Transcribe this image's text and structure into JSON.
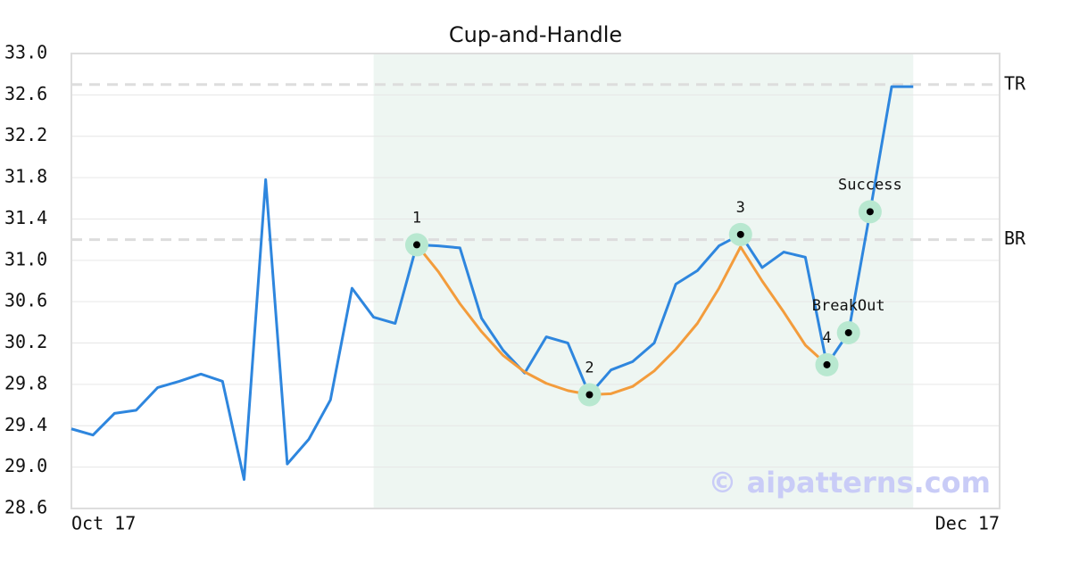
{
  "chart_data": {
    "type": "line",
    "title": "Cup-and-Handle",
    "x": [
      0,
      1,
      2,
      3,
      4,
      5,
      6,
      7,
      8,
      9,
      10,
      11,
      12,
      13,
      14,
      15,
      16,
      17,
      18,
      19,
      20,
      21,
      22,
      23,
      24,
      25,
      26,
      27,
      28,
      29,
      30,
      31,
      32,
      33,
      34,
      35,
      36,
      37,
      38,
      39
    ],
    "xlim": [
      0,
      43
    ],
    "xticks": [
      {
        "value": 0,
        "label": "Oct 17"
      },
      {
        "value": 43,
        "label": "Dec 17"
      }
    ],
    "ylim": [
      28.6,
      33.0
    ],
    "yticks": [
      {
        "value": 28.6,
        "label": "28.6"
      },
      {
        "value": 29,
        "label": "29.0"
      },
      29.4,
      29.8,
      30.2,
      30.6,
      {
        "value": 31,
        "label": "31.0"
      },
      31.4,
      31.8,
      32.2,
      32.6,
      {
        "value": 33,
        "label": "33.0"
      }
    ],
    "grid": true,
    "series": [
      {
        "color": "#2e86de",
        "values": [
          29.37,
          29.31,
          29.52,
          29.55,
          29.77,
          29.83,
          29.9,
          29.83,
          28.88,
          31.78,
          29.03,
          29.27,
          29.65,
          30.73,
          30.45,
          30.39,
          31.15,
          31.14,
          31.12,
          30.44,
          30.13,
          29.91,
          30.26,
          30.2,
          29.7,
          29.94,
          30.02,
          30.2,
          30.77,
          30.9,
          31.14,
          31.25,
          30.93,
          31.08,
          31.03,
          29.99,
          30.3,
          31.47,
          32.68,
          32.68
        ]
      },
      {
        "color": "#f39c3c",
        "values": [
          null,
          null,
          null,
          null,
          null,
          null,
          null,
          null,
          null,
          null,
          null,
          null,
          null,
          null,
          null,
          null,
          31.15,
          30.89,
          30.58,
          30.31,
          30.08,
          29.92,
          29.81,
          29.74,
          29.7,
          29.71,
          29.78,
          29.93,
          30.14,
          30.39,
          30.73,
          31.13,
          30.8,
          30.5,
          30.18,
          29.99,
          null,
          null,
          null,
          null
        ]
      }
    ],
    "highlight": [
      14,
      39
    ],
    "reference_lines": [
      {
        "label": "TR",
        "value": 32.7
      },
      {
        "label": "BR",
        "value": 31.2
      }
    ],
    "annotations": [
      {
        "index": 16,
        "label": "1"
      },
      {
        "index": 24,
        "label": "2"
      },
      {
        "index": 31,
        "label": "3"
      },
      {
        "index": 35,
        "label": "4"
      },
      {
        "index": 36,
        "label": "BreakOut"
      },
      {
        "index": 37,
        "label": "Success"
      }
    ],
    "watermark": "© aipatterns.com"
  }
}
